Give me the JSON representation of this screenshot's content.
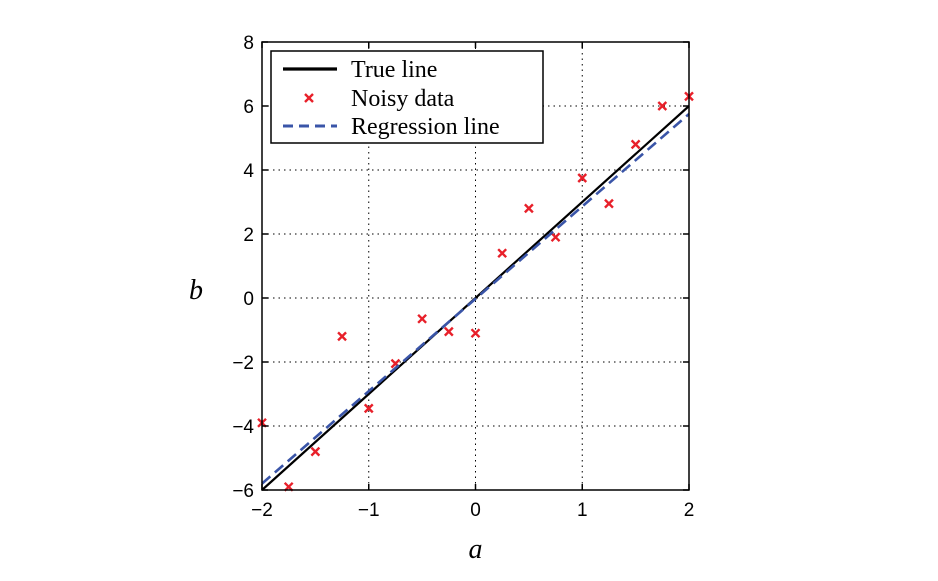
{
  "chart_data": {
    "type": "line",
    "xlabel": "a",
    "ylabel": "b",
    "xlim": [
      -2,
      2
    ],
    "ylim": [
      -6,
      8
    ],
    "xticks": [
      -2,
      -1,
      0,
      1,
      2
    ],
    "yticks": [
      -6,
      -4,
      -2,
      0,
      2,
      4,
      6,
      8
    ],
    "xtick_labels": [
      "−2",
      "−1",
      "0",
      "1",
      "2"
    ],
    "ytick_labels": [
      "−6",
      "−4",
      "−2",
      "0",
      "2",
      "4",
      "6",
      "8"
    ],
    "grid": true,
    "legend_position": "top-left",
    "series": [
      {
        "name": "True line",
        "type": "line",
        "style": "solid",
        "color": "#000000",
        "x": [
          -2,
          2
        ],
        "y": [
          -6,
          6
        ]
      },
      {
        "name": "Noisy data",
        "type": "scatter",
        "marker": "x",
        "color": "#e8202a",
        "x": [
          -2,
          -1.75,
          -1.5,
          -1.25,
          -1,
          -0.75,
          -0.5,
          -0.25,
          0,
          0.25,
          0.5,
          0.75,
          1,
          1.25,
          1.5,
          1.75,
          2
        ],
        "y": [
          -3.9,
          -5.9,
          -4.8,
          -1.2,
          -3.45,
          -2.05,
          -0.65,
          -1.05,
          -1.1,
          1.4,
          2.8,
          1.9,
          3.75,
          2.95,
          4.8,
          6.0,
          6.3
        ]
      },
      {
        "name": "Regression line",
        "type": "line",
        "style": "dashed",
        "color": "#3a55a8",
        "x": [
          -2,
          2
        ],
        "y": [
          -5.8,
          5.75
        ]
      }
    ]
  }
}
